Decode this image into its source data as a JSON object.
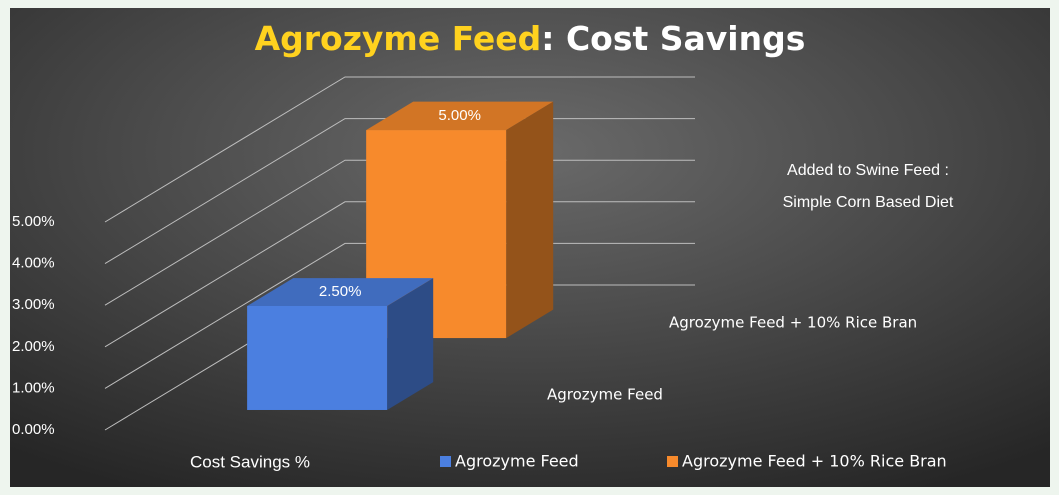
{
  "chart_data": {
    "type": "bar3d",
    "title": [
      "Agrozyme Feed",
      ": Cost Savings"
    ],
    "annotation": [
      "Added to Swine Feed :",
      "Simple Corn Based Diet"
    ],
    "categories": [
      "Cost Savings %"
    ],
    "series": [
      {
        "name": "Agrozyme Feed",
        "color": "#4b7fe0",
        "values": [
          2.5
        ],
        "value_labels": [
          "2.50%"
        ]
      },
      {
        "name": "Agrozyme Feed + 10% Rice Bran",
        "color": "#f78a2c",
        "values": [
          5
        ],
        "value_labels": [
          "5.00%"
        ]
      }
    ],
    "ylim": [
      0,
      5
    ],
    "yticks": [
      {
        "value": 0,
        "label": "0.00%"
      },
      {
        "value": 1,
        "label": "1.00%"
      },
      {
        "value": 2,
        "label": "2.00%"
      },
      {
        "value": 3,
        "label": "3.00%"
      },
      {
        "value": 4,
        "label": "4.00%"
      },
      {
        "value": 5,
        "label": "5.00%"
      }
    ],
    "grid": true,
    "legend": "bottom"
  }
}
